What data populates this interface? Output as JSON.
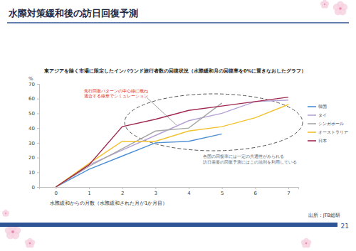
{
  "chart_data": {
    "type": "line",
    "title": "水際対策緩和後の訪日回復予測",
    "subtitle": "東アジアを除く市場に限定したインバウンド旅行者数の回復状況（水際緩和月の回復率を0%に置きなおしたグラフ）",
    "y_label": "%",
    "x_label": "水際緩和からの月数（水際緩和された月が1か月目）",
    "x": [
      0,
      1,
      2,
      3,
      4,
      5,
      6,
      7
    ],
    "xlim": [
      -0.5,
      7.3
    ],
    "xticks": [
      0,
      1,
      2,
      3,
      4,
      5,
      6,
      7
    ],
    "ylim": [
      0,
      70
    ],
    "yticks": [
      0,
      10,
      20,
      30,
      40,
      50,
      60,
      70
    ],
    "grid": false,
    "legend": "right",
    "series": [
      {
        "name": "韓国",
        "color": "#4f8fd6",
        "values": [
          0,
          12,
          21,
          30,
          31,
          36,
          null,
          null
        ]
      },
      {
        "name": "タイ",
        "color": "#b4a2d4",
        "values": [
          0,
          15,
          25,
          35,
          45,
          50,
          58,
          59
        ]
      },
      {
        "name": "シンガポール",
        "color": "#a6a6a6",
        "values": [
          0,
          14,
          26,
          38,
          40,
          57,
          null,
          null
        ]
      },
      {
        "name": "オーストラリア",
        "color": "#f2c12e",
        "values": [
          0,
          16,
          31,
          31,
          38,
          41,
          47,
          56
        ]
      },
      {
        "name": "日本",
        "color": "#a0284e",
        "values": [
          0,
          15,
          41,
          46,
          52,
          55,
          58,
          61
        ]
      }
    ],
    "annotations": [
      [
        "先行回復パターンの中心線に概ね",
        "適合する線形でシミュレーション"
      ],
      [
        "各国の回復率には一定の共通性がみられる",
        "訪日需要の回復予測にはこの法則を利用している"
      ]
    ],
    "source": "出所：JTB総研",
    "page": "21"
  }
}
